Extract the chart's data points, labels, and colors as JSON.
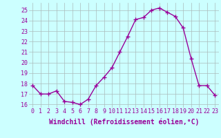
{
  "x": [
    0,
    1,
    2,
    3,
    4,
    5,
    6,
    7,
    8,
    9,
    10,
    11,
    12,
    13,
    14,
    15,
    16,
    17,
    18,
    19,
    20,
    21,
    22,
    23
  ],
  "y": [
    17.8,
    17.0,
    17.0,
    17.3,
    16.3,
    16.2,
    16.0,
    16.5,
    17.8,
    18.6,
    19.5,
    21.0,
    22.5,
    24.1,
    24.3,
    25.0,
    25.2,
    24.8,
    24.4,
    23.3,
    20.4,
    17.8,
    17.8,
    16.9
  ],
  "line_color": "#990099",
  "marker": "+",
  "markersize": 4,
  "linewidth": 1.0,
  "bg_color": "#ccffff",
  "grid_color": "#aabbbb",
  "xlabel": "Windchill (Refroidissement éolien,°C)",
  "xlabel_fontsize": 7,
  "ylim": [
    15.7,
    25.7
  ],
  "xlim": [
    -0.5,
    23.5
  ],
  "yticks": [
    16,
    17,
    18,
    19,
    20,
    21,
    22,
    23,
    24,
    25
  ],
  "xtick_labels": [
    "0",
    "1",
    "2",
    "3",
    "4",
    "5",
    "6",
    "7",
    "8",
    "9",
    "10",
    "11",
    "12",
    "13",
    "14",
    "15",
    "16",
    "17",
    "18",
    "19",
    "20",
    "21",
    "22",
    "23"
  ],
  "tick_fontsize": 6
}
